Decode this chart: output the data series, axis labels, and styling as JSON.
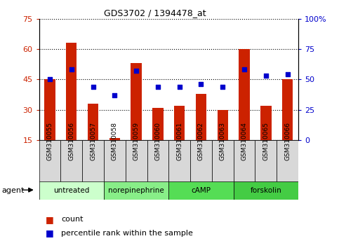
{
  "title": "GDS3702 / 1394478_at",
  "samples": [
    "GSM310055",
    "GSM310056",
    "GSM310057",
    "GSM310058",
    "GSM310059",
    "GSM310060",
    "GSM310061",
    "GSM310062",
    "GSM310063",
    "GSM310064",
    "GSM310065",
    "GSM310066"
  ],
  "bar_values": [
    45,
    63,
    33,
    16,
    53,
    31,
    32,
    38,
    30,
    60,
    32,
    45
  ],
  "dot_values": [
    50,
    58,
    44,
    37,
    57,
    44,
    44,
    46,
    44,
    58,
    53,
    54
  ],
  "bar_color": "#cc2200",
  "dot_color": "#0000cc",
  "ylim_left": [
    15,
    75
  ],
  "ylim_right": [
    0,
    100
  ],
  "yticks_left": [
    15,
    30,
    45,
    60,
    75
  ],
  "yticks_right": [
    0,
    25,
    50,
    75,
    100
  ],
  "yticklabels_right": [
    "0",
    "25",
    "50",
    "75",
    "100%"
  ],
  "groups": [
    {
      "label": "untreated",
      "start": 0,
      "end": 3,
      "color": "#ccffcc"
    },
    {
      "label": "norepinephrine",
      "start": 3,
      "end": 6,
      "color": "#88ee88"
    },
    {
      "label": "cAMP",
      "start": 6,
      "end": 9,
      "color": "#55dd55"
    },
    {
      "label": "forskolin",
      "start": 9,
      "end": 12,
      "color": "#44cc44"
    }
  ],
  "legend_count_label": "count",
  "legend_pct_label": "percentile rank within the sample",
  "agent_label": "agent",
  "bar_width": 0.5,
  "grid_color": "#000000",
  "bg_gray": "#d8d8d8"
}
